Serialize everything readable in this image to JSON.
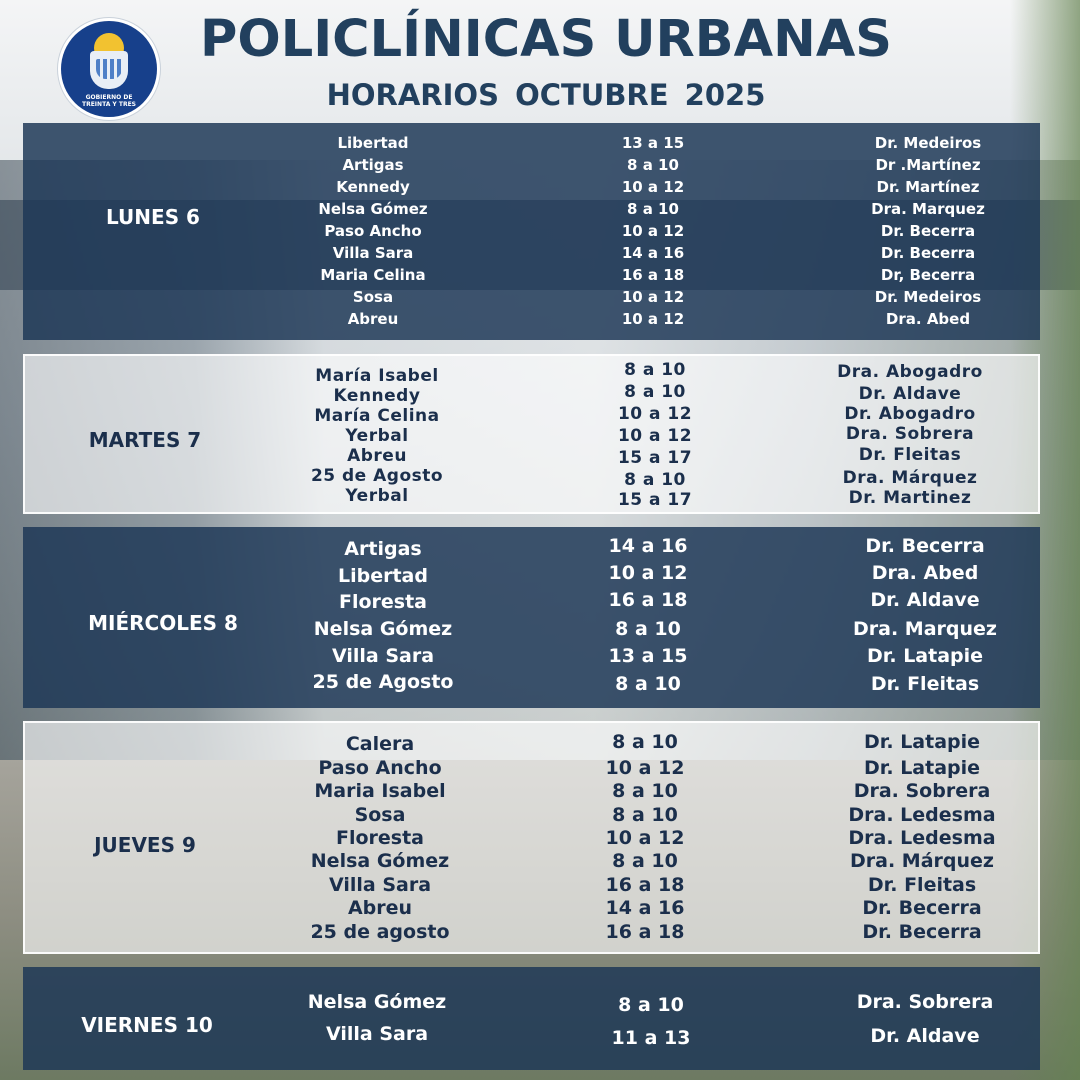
{
  "header": {
    "logo_text_line1": "GOBIERNO DE",
    "logo_text_line2": "TREINTA Y TRES",
    "title": "POLICLÍNICAS URBANAS",
    "subtitle": "HORARIOS  OCTUBRE 2025"
  },
  "days": [
    {
      "label": "LUNES 6",
      "rows": [
        {
          "place": "Libertad",
          "hours": "13 a 15",
          "doctor": "Dr.  Medeiros"
        },
        {
          "place": "Artigas",
          "hours": "8 a 10",
          "doctor": "Dr .Martínez"
        },
        {
          "place": "Kennedy",
          "hours": "10 a 12",
          "doctor": "Dr. Martínez"
        },
        {
          "place": "Nelsa Gómez",
          "hours": "8 a 10",
          "doctor": "Dra. Marquez"
        },
        {
          "place": "Paso Ancho",
          "hours": "10 a 12",
          "doctor": "Dr.  Becerra"
        },
        {
          "place": "Villa Sara",
          "hours": "14 a 16",
          "doctor": "Dr.  Becerra"
        },
        {
          "place": "Maria Celina",
          "hours": "16 a 18",
          "doctor": "Dr, Becerra"
        },
        {
          "place": "Sosa",
          "hours": "10 a 12",
          "doctor": "Dr. Medeiros"
        },
        {
          "place": "Abreu",
          "hours": "10 a 12",
          "doctor": "Dra. Abed"
        }
      ]
    },
    {
      "label": "MARTES 7",
      "rows": [
        {
          "place": "María Isabel",
          "hours": "8 a 10",
          "doctor": "Dra. Abogadro"
        },
        {
          "place": "Kennedy",
          "hours": "8 a 10",
          "doctor": "Dr. Aldave"
        },
        {
          "place": "María Celina",
          "hours": "10 a 12",
          "doctor": "Dr. Abogadro"
        },
        {
          "place": "Yerbal",
          "hours": "10 a 12",
          "doctor": "Dra. Sobrera"
        },
        {
          "place": "Abreu",
          "hours": "15 a 17",
          "doctor": "Dr. Fleitas"
        },
        {
          "place": "25 de Agosto",
          "hours": "8 a 10",
          "doctor": "Dra. Márquez"
        },
        {
          "place": "Yerbal",
          "hours": "15 a 17",
          "doctor": "Dr. Martinez"
        }
      ]
    },
    {
      "label": "MIÉRCOLES 8",
      "rows": [
        {
          "place": "Artigas",
          "hours": "14 a 16",
          "doctor": "Dr. Becerra"
        },
        {
          "place": "Libertad",
          "hours": "10 a 12",
          "doctor": "Dra. Abed"
        },
        {
          "place": "Floresta",
          "hours": "16 a 18",
          "doctor": "Dr. Aldave"
        },
        {
          "place": "Nelsa Gómez",
          "hours": "8 a 10",
          "doctor": "Dra.  Marquez"
        },
        {
          "place": "Villa Sara",
          "hours": "13 a 15",
          "doctor": "Dr. Latapie"
        },
        {
          "place": "25 de Agosto",
          "hours": "8 a 10",
          "doctor": "Dr. Fleitas"
        }
      ]
    },
    {
      "label": "JUEVES 9",
      "rows": [
        {
          "place": "Calera",
          "hours": "8  a  10",
          "doctor": "Dr.  Latapie"
        },
        {
          "place": "Paso Ancho",
          "hours": "10  a  12",
          "doctor": "Dr. Latapie"
        },
        {
          "place": "Maria Isabel",
          "hours": "8  a  10",
          "doctor": "Dra. Sobrera"
        },
        {
          "place": "Sosa",
          "hours": "8  a  10",
          "doctor": "Dra. Ledesma"
        },
        {
          "place": "Floresta",
          "hours": "10  a  12",
          "doctor": "Dra. Ledesma"
        },
        {
          "place": "Nelsa Gómez",
          "hours": "8  a  10",
          "doctor": "Dra. Márquez"
        },
        {
          "place": "Villa Sara",
          "hours": "16  a  18",
          "doctor": "Dr. Fleitas"
        },
        {
          "place": "Abreu",
          "hours": "14  a  16",
          "doctor": "Dr. Becerra"
        },
        {
          "place": "25 de agosto",
          "hours": "16  a  18",
          "doctor": "Dr. Becerra"
        }
      ]
    },
    {
      "label": "VIERNES 10",
      "rows": [
        {
          "place": "Nelsa Gómez",
          "hours": "8 a 10",
          "doctor": "Dra. Sobrera"
        },
        {
          "place": "Villa Sara",
          "hours": "11 a 13",
          "doctor": "Dr. Aldave"
        }
      ]
    }
  ]
}
